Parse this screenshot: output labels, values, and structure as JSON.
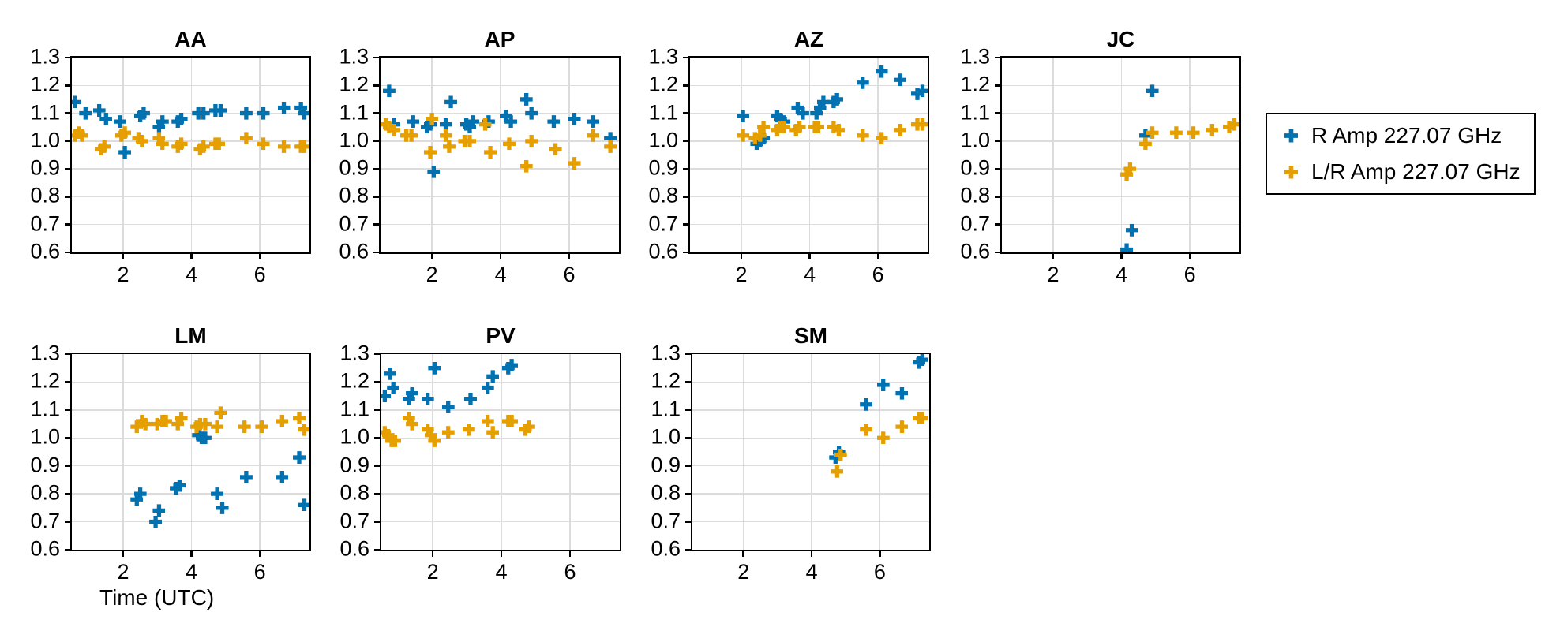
{
  "figure": {
    "background": "#ffffff",
    "xlabel": "Time (UTC)",
    "axes": {
      "xlim": [
        0.5,
        7.45
      ],
      "ylim": [
        0.6,
        1.3
      ],
      "x_ticks": [
        2,
        4,
        6
      ],
      "y_ticks": [
        "1.3",
        "1.2",
        "1.1",
        "1.0",
        "0.9",
        "0.8",
        "0.7",
        "0.6"
      ],
      "y_grid": [
        1.2,
        1.1,
        1.0,
        0.9,
        0.8,
        0.7
      ],
      "grid": true
    },
    "series_colors": {
      "r_amp": "#0072B2",
      "lr_amp": "#E69F00"
    },
    "legend": {
      "position": "right of top row",
      "items": [
        {
          "label": "R Amp 227.07 GHz",
          "color": "#0072B2",
          "marker": "plus"
        },
        {
          "label": "L/R Amp 227.07 GHz",
          "color": "#E69F00",
          "marker": "plus"
        }
      ]
    }
  },
  "chart_data": [
    {
      "type": "scatter",
      "title": "AA",
      "series": [
        {
          "name": "R Amp 227.07 GHz",
          "color": "#0072B2",
          "marker": "plus",
          "points": [
            [
              0.6,
              1.14
            ],
            [
              0.9,
              1.1
            ],
            [
              1.3,
              1.11
            ],
            [
              1.5,
              1.08
            ],
            [
              1.9,
              1.07
            ],
            [
              2.05,
              0.96
            ],
            [
              2.5,
              1.09
            ],
            [
              2.6,
              1.1
            ],
            [
              3.05,
              1.05
            ],
            [
              3.15,
              1.07
            ],
            [
              3.6,
              1.07
            ],
            [
              3.7,
              1.08
            ],
            [
              4.2,
              1.1
            ],
            [
              4.35,
              1.1
            ],
            [
              4.7,
              1.11
            ],
            [
              4.85,
              1.11
            ],
            [
              5.6,
              1.1
            ],
            [
              6.1,
              1.1
            ],
            [
              6.7,
              1.12
            ],
            [
              7.2,
              1.12
            ],
            [
              7.3,
              1.1
            ]
          ]
        },
        {
          "name": "L/R Amp 227.07 GHz",
          "color": "#E69F00",
          "marker": "plus",
          "points": [
            [
              0.6,
              1.02
            ],
            [
              0.7,
              1.03
            ],
            [
              0.8,
              1.02
            ],
            [
              1.35,
              0.97
            ],
            [
              1.45,
              0.98
            ],
            [
              1.95,
              1.02
            ],
            [
              2.05,
              1.03
            ],
            [
              2.45,
              1.01
            ],
            [
              2.55,
              1.0
            ],
            [
              3.05,
              1.01
            ],
            [
              3.15,
              0.99
            ],
            [
              3.6,
              0.98
            ],
            [
              3.7,
              0.99
            ],
            [
              4.25,
              0.97
            ],
            [
              4.35,
              0.98
            ],
            [
              4.7,
              0.99
            ],
            [
              4.8,
              0.99
            ],
            [
              5.6,
              1.01
            ],
            [
              6.1,
              0.99
            ],
            [
              6.7,
              0.98
            ],
            [
              7.2,
              0.98
            ],
            [
              7.3,
              0.98
            ]
          ]
        }
      ]
    },
    {
      "type": "scatter",
      "title": "AP",
      "series": [
        {
          "name": "R Amp 227.07 GHz",
          "color": "#0072B2",
          "marker": "plus",
          "points": [
            [
              0.75,
              1.18
            ],
            [
              0.9,
              1.06
            ],
            [
              1.45,
              1.07
            ],
            [
              1.85,
              1.05
            ],
            [
              1.95,
              1.06
            ],
            [
              2.05,
              0.89
            ],
            [
              2.4,
              1.06
            ],
            [
              2.55,
              1.14
            ],
            [
              3.0,
              1.06
            ],
            [
              3.1,
              1.05
            ],
            [
              3.2,
              1.07
            ],
            [
              3.65,
              1.07
            ],
            [
              4.15,
              1.09
            ],
            [
              4.3,
              1.07
            ],
            [
              4.75,
              1.15
            ],
            [
              4.9,
              1.1
            ],
            [
              5.55,
              1.07
            ],
            [
              6.15,
              1.08
            ],
            [
              6.7,
              1.07
            ],
            [
              7.2,
              1.01
            ]
          ]
        },
        {
          "name": "L/R Amp 227.07 GHz",
          "color": "#E69F00",
          "marker": "plus",
          "points": [
            [
              0.65,
              1.06
            ],
            [
              0.75,
              1.05
            ],
            [
              0.9,
              1.04
            ],
            [
              1.25,
              1.02
            ],
            [
              1.4,
              1.02
            ],
            [
              1.95,
              0.96
            ],
            [
              2.0,
              1.08
            ],
            [
              2.4,
              1.02
            ],
            [
              2.5,
              0.98
            ],
            [
              2.95,
              1.0
            ],
            [
              3.1,
              1.0
            ],
            [
              3.55,
              1.06
            ],
            [
              3.7,
              0.96
            ],
            [
              4.25,
              0.99
            ],
            [
              4.75,
              0.91
            ],
            [
              4.9,
              1.0
            ],
            [
              5.6,
              0.97
            ],
            [
              6.15,
              0.92
            ],
            [
              6.7,
              1.02
            ],
            [
              7.2,
              0.98
            ]
          ]
        }
      ]
    },
    {
      "type": "scatter",
      "title": "AZ",
      "series": [
        {
          "name": "R Amp 227.07 GHz",
          "color": "#0072B2",
          "marker": "plus",
          "points": [
            [
              2.05,
              1.09
            ],
            [
              2.45,
              0.99
            ],
            [
              2.55,
              1.0
            ],
            [
              2.65,
              1.01
            ],
            [
              3.05,
              1.09
            ],
            [
              3.15,
              1.08
            ],
            [
              3.25,
              1.07
            ],
            [
              3.65,
              1.12
            ],
            [
              3.8,
              1.1
            ],
            [
              4.2,
              1.1
            ],
            [
              4.3,
              1.12
            ],
            [
              4.4,
              1.14
            ],
            [
              4.7,
              1.14
            ],
            [
              4.8,
              1.15
            ],
            [
              5.55,
              1.21
            ],
            [
              6.1,
              1.25
            ],
            [
              6.65,
              1.22
            ],
            [
              7.15,
              1.17
            ],
            [
              7.3,
              1.18
            ]
          ]
        },
        {
          "name": "L/R Amp 227.07 GHz",
          "color": "#E69F00",
          "marker": "plus",
          "points": [
            [
              2.05,
              1.02
            ],
            [
              2.4,
              1.01
            ],
            [
              2.55,
              1.02
            ],
            [
              2.65,
              1.05
            ],
            [
              3.05,
              1.04
            ],
            [
              3.15,
              1.05
            ],
            [
              3.25,
              1.05
            ],
            [
              3.6,
              1.04
            ],
            [
              3.7,
              1.05
            ],
            [
              4.15,
              1.05
            ],
            [
              4.25,
              1.05
            ],
            [
              4.7,
              1.05
            ],
            [
              4.85,
              1.04
            ],
            [
              5.55,
              1.02
            ],
            [
              6.1,
              1.01
            ],
            [
              6.65,
              1.04
            ],
            [
              7.15,
              1.06
            ],
            [
              7.3,
              1.06
            ]
          ]
        }
      ]
    },
    {
      "type": "scatter",
      "title": "JC",
      "series": [
        {
          "name": "R Amp 227.07 GHz",
          "color": "#0072B2",
          "marker": "plus",
          "points": [
            [
              4.15,
              0.61
            ],
            [
              4.3,
              0.68
            ],
            [
              4.7,
              1.02
            ],
            [
              4.9,
              1.18
            ]
          ]
        },
        {
          "name": "L/R Amp 227.07 GHz",
          "color": "#E69F00",
          "marker": "plus",
          "points": [
            [
              4.15,
              0.88
            ],
            [
              4.25,
              0.9
            ],
            [
              4.7,
              0.99
            ],
            [
              4.9,
              1.03
            ],
            [
              5.6,
              1.03
            ],
            [
              6.1,
              1.03
            ],
            [
              6.65,
              1.04
            ],
            [
              7.15,
              1.05
            ],
            [
              7.3,
              1.06
            ]
          ]
        }
      ]
    },
    {
      "type": "scatter",
      "title": "LM",
      "series": [
        {
          "name": "R Amp 227.07 GHz",
          "color": "#0072B2",
          "marker": "plus",
          "points": [
            [
              2.4,
              0.78
            ],
            [
              2.5,
              0.8
            ],
            [
              2.95,
              0.7
            ],
            [
              3.05,
              0.74
            ],
            [
              3.55,
              0.82
            ],
            [
              3.65,
              0.83
            ],
            [
              4.2,
              1.01
            ],
            [
              4.3,
              1.0
            ],
            [
              4.4,
              1.0
            ],
            [
              4.75,
              0.8
            ],
            [
              4.9,
              0.75
            ],
            [
              5.6,
              0.86
            ],
            [
              6.65,
              0.86
            ],
            [
              7.15,
              0.93
            ],
            [
              7.3,
              0.76
            ]
          ]
        },
        {
          "name": "L/R Amp 227.07 GHz",
          "color": "#E69F00",
          "marker": "plus",
          "points": [
            [
              2.4,
              1.04
            ],
            [
              2.55,
              1.06
            ],
            [
              2.65,
              1.05
            ],
            [
              3.0,
              1.05
            ],
            [
              3.15,
              1.06
            ],
            [
              3.25,
              1.06
            ],
            [
              3.6,
              1.05
            ],
            [
              3.7,
              1.07
            ],
            [
              4.15,
              1.04
            ],
            [
              4.25,
              1.05
            ],
            [
              4.4,
              1.05
            ],
            [
              4.75,
              1.04
            ],
            [
              4.85,
              1.09
            ],
            [
              5.55,
              1.04
            ],
            [
              6.05,
              1.04
            ],
            [
              6.65,
              1.06
            ],
            [
              7.15,
              1.07
            ],
            [
              7.3,
              1.03
            ]
          ]
        }
      ]
    },
    {
      "type": "scatter",
      "title": "PV",
      "series": [
        {
          "name": "R Amp 227.07 GHz",
          "color": "#0072B2",
          "marker": "plus",
          "points": [
            [
              0.6,
              1.15
            ],
            [
              0.75,
              1.23
            ],
            [
              0.85,
              1.18
            ],
            [
              1.3,
              1.14
            ],
            [
              1.4,
              1.16
            ],
            [
              1.85,
              1.14
            ],
            [
              2.05,
              1.25
            ],
            [
              2.45,
              1.11
            ],
            [
              3.1,
              1.14
            ],
            [
              3.6,
              1.18
            ],
            [
              3.75,
              1.22
            ],
            [
              4.2,
              1.25
            ],
            [
              4.3,
              1.26
            ]
          ]
        },
        {
          "name": "L/R Amp 227.07 GHz",
          "color": "#E69F00",
          "marker": "plus",
          "points": [
            [
              0.6,
              1.02
            ],
            [
              0.7,
              1.01
            ],
            [
              0.8,
              0.99
            ],
            [
              0.9,
              0.99
            ],
            [
              1.3,
              1.07
            ],
            [
              1.4,
              1.05
            ],
            [
              1.85,
              1.03
            ],
            [
              1.95,
              1.01
            ],
            [
              2.05,
              0.99
            ],
            [
              2.45,
              1.02
            ],
            [
              3.05,
              1.03
            ],
            [
              3.6,
              1.06
            ],
            [
              3.75,
              1.02
            ],
            [
              4.2,
              1.06
            ],
            [
              4.3,
              1.06
            ],
            [
              4.7,
              1.03
            ],
            [
              4.8,
              1.04
            ]
          ]
        }
      ]
    },
    {
      "type": "scatter",
      "title": "SM",
      "series": [
        {
          "name": "R Amp 227.07 GHz",
          "color": "#0072B2",
          "marker": "plus",
          "points": [
            [
              4.7,
              0.93
            ],
            [
              4.8,
              0.95
            ],
            [
              5.6,
              1.12
            ],
            [
              6.1,
              1.19
            ],
            [
              6.65,
              1.16
            ],
            [
              7.15,
              1.27
            ],
            [
              7.25,
              1.28
            ]
          ]
        },
        {
          "name": "L/R Amp 227.07 GHz",
          "color": "#E69F00",
          "marker": "plus",
          "points": [
            [
              4.75,
              0.88
            ],
            [
              4.85,
              0.94
            ],
            [
              5.6,
              1.03
            ],
            [
              6.1,
              1.0
            ],
            [
              6.65,
              1.04
            ],
            [
              7.15,
              1.07
            ],
            [
              7.25,
              1.07
            ]
          ]
        }
      ]
    }
  ]
}
